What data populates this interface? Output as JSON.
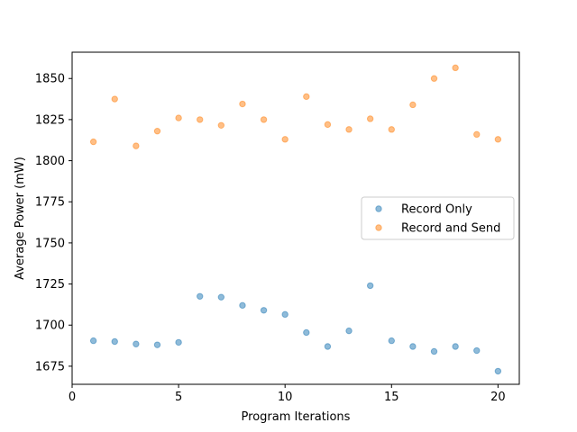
{
  "chart_data": {
    "type": "scatter",
    "title": "",
    "xlabel": "Program Iterations",
    "ylabel": "Average Power (mW)",
    "xlim": [
      0,
      21
    ],
    "ylim": [
      1664,
      1866
    ],
    "xticks": [
      0,
      5,
      10,
      15,
      20
    ],
    "yticks": [
      1675,
      1700,
      1725,
      1750,
      1775,
      1800,
      1825,
      1850
    ],
    "grid": false,
    "legend_position": "center-right",
    "series": [
      {
        "name": "Record Only",
        "color": "#1f77b4",
        "x": [
          1,
          2,
          3,
          4,
          5,
          6,
          7,
          8,
          9,
          10,
          11,
          12,
          13,
          14,
          15,
          16,
          17,
          18,
          19,
          20
        ],
        "y": [
          1690.5,
          1690,
          1688.5,
          1688,
          1689.5,
          1717.5,
          1717,
          1712,
          1709,
          1706.5,
          1695.5,
          1687,
          1696.5,
          1724,
          1690.5,
          1687,
          1684,
          1687,
          1684.5,
          1672
        ]
      },
      {
        "name": "Record and Send",
        "color": "#ff7f0e",
        "x": [
          1,
          2,
          3,
          4,
          5,
          6,
          7,
          8,
          9,
          10,
          11,
          12,
          13,
          14,
          15,
          16,
          17,
          18,
          19,
          20
        ],
        "y": [
          1811.5,
          1837.5,
          1809,
          1818,
          1826,
          1825,
          1821.5,
          1834.5,
          1825,
          1813,
          1839,
          1822,
          1819,
          1825.5,
          1819,
          1834,
          1850,
          1856.5,
          1816,
          1813
        ]
      }
    ]
  }
}
